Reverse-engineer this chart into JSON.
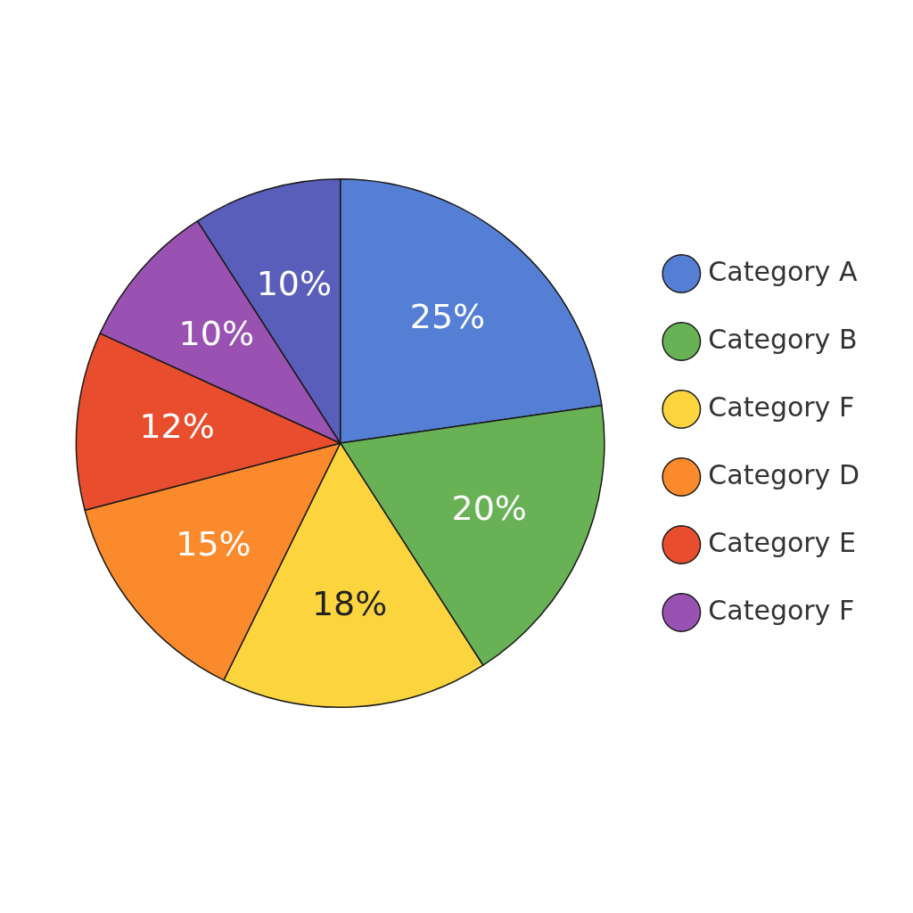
{
  "chart_data": {
    "type": "pie",
    "categories": [
      "Category A",
      "Category B",
      "Category F",
      "Category D",
      "Category E",
      "Category F",
      null
    ],
    "values": [
      25,
      20,
      18,
      15,
      12,
      10,
      10
    ],
    "colors": [
      "#557fd4",
      "#68b155",
      "#fcd53e",
      "#fb8a2c",
      "#e84e2e",
      "#9a52b2",
      "#5a5ebb"
    ],
    "value_labels": [
      "25%",
      "20%",
      "18%",
      "15%",
      "12%",
      "10%",
      "10%"
    ],
    "legend": "right"
  }
}
